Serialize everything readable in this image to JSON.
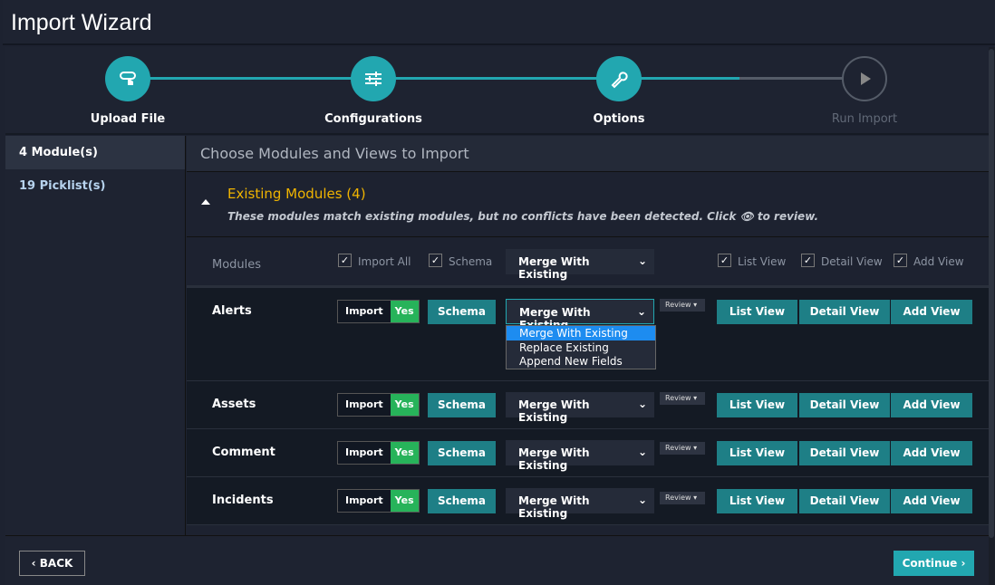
{
  "title": "Import Wizard",
  "steps": [
    {
      "label": "Upload File",
      "icon": "upload-hand-icon"
    },
    {
      "label": "Configurations",
      "icon": "sliders-icon"
    },
    {
      "label": "Options",
      "icon": "wrench-icon"
    },
    {
      "label": "Run Import",
      "icon": "play-icon"
    }
  ],
  "sidebar": {
    "items": [
      {
        "label": "4 Module(s)"
      },
      {
        "label": "19 Picklist(s)"
      }
    ]
  },
  "main": {
    "heading": "Choose Modules and Views to Import",
    "section_title": "Existing Modules (4)",
    "section_desc": "These modules match existing modules, but no conflicts have been detected. Click 👁 to review.",
    "header": {
      "modules": "Modules",
      "import_all": "Import All",
      "schema": "Schema",
      "merge": "Merge With Existing",
      "list_view": "List View",
      "detail_view": "Detail View",
      "add_view": "Add View"
    },
    "rows": [
      {
        "name": "Alerts",
        "import": "Import",
        "yes": "Yes",
        "schema": "Schema",
        "merge": "Merge With Existing",
        "review": "Review",
        "list": "List View",
        "detail": "Detail View",
        "add": "Add View"
      },
      {
        "name": "Assets",
        "import": "Import",
        "yes": "Yes",
        "schema": "Schema",
        "merge": "Merge With Existing",
        "review": "Review",
        "list": "List View",
        "detail": "Detail View",
        "add": "Add View"
      },
      {
        "name": "Comment",
        "import": "Import",
        "yes": "Yes",
        "schema": "Schema",
        "merge": "Merge With Existing",
        "review": "Review",
        "list": "List View",
        "detail": "Detail View",
        "add": "Add View"
      },
      {
        "name": "Incidents",
        "import": "Import",
        "yes": "Yes",
        "schema": "Schema",
        "merge": "Merge With Existing",
        "review": "Review",
        "list": "List View",
        "detail": "Detail View",
        "add": "Add View"
      }
    ],
    "dropdown_options": [
      "Merge With Existing",
      "Replace Existing",
      "Append New Fields"
    ]
  },
  "footer": {
    "back": "BACK",
    "continue": "Continue"
  },
  "colors": {
    "accent": "#22a7b0",
    "yes": "#27b35a",
    "section": "#f0b400"
  }
}
